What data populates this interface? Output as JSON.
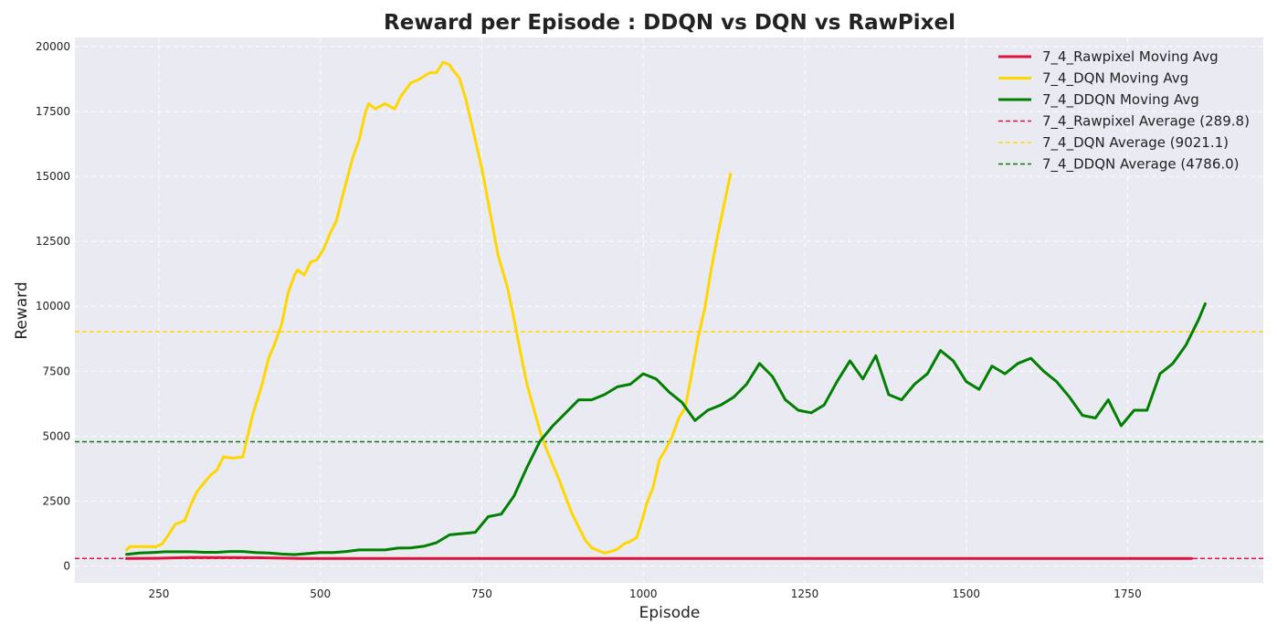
{
  "chart_data": {
    "type": "line",
    "title": "Reward per Episode : DDQN vs DQN vs RawPixel",
    "xlabel": "Episode",
    "ylabel": "Reward",
    "xlim": [
      120,
      1960
    ],
    "ylim": [
      -650,
      20350
    ],
    "xticks": [
      250,
      500,
      750,
      1000,
      1250,
      1500,
      1750
    ],
    "yticks": [
      0,
      2500,
      5000,
      7500,
      10000,
      12500,
      15000,
      17500,
      20000
    ],
    "grid": true,
    "legend_position": "top-right",
    "background": "#eaeaf2",
    "series": [
      {
        "name": "7_4_Rawpixel Moving Avg",
        "style": "solid",
        "color": "#dc143c",
        "x": [
          200,
          250,
          300,
          400,
          470,
          600,
          800,
          1000,
          1200,
          1400,
          1600,
          1849
        ],
        "y": [
          290,
          300,
          330,
          320,
          290,
          290,
          290,
          290,
          290,
          290,
          290,
          290
        ]
      },
      {
        "name": "7_4_DQN Moving Avg",
        "style": "solid",
        "color": "#ffd700",
        "x": [
          200,
          205,
          220,
          245,
          255,
          265,
          275,
          290,
          300,
          310,
          320,
          330,
          340,
          350,
          365,
          380,
          395,
          410,
          420,
          430,
          440,
          450,
          460,
          465,
          475,
          485,
          495,
          505,
          515,
          525,
          535,
          550,
          560,
          570,
          575,
          585,
          600,
          615,
          625,
          640,
          650,
          670,
          680,
          690,
          700,
          705,
          715,
          725,
          740,
          750,
          760,
          775,
          790,
          800,
          810,
          820,
          830,
          840,
          850,
          870,
          890,
          910,
          920,
          940,
          950,
          960,
          970,
          980,
          990,
          1000,
          1005,
          1015,
          1025,
          1035,
          1045,
          1055,
          1065,
          1075,
          1085,
          1095,
          1105,
          1115,
          1125,
          1135
        ],
        "y": [
          620,
          750,
          750,
          740,
          850,
          1200,
          1600,
          1750,
          2400,
          2900,
          3200,
          3500,
          3700,
          4200,
          4150,
          4200,
          5800,
          7000,
          8000,
          8600,
          9300,
          10500,
          11200,
          11400,
          11200,
          11700,
          11800,
          12200,
          12800,
          13300,
          14300,
          15700,
          16400,
          17500,
          17800,
          17600,
          17800,
          17600,
          18100,
          18600,
          18700,
          19000,
          19000,
          19400,
          19300,
          19100,
          18800,
          18000,
          16400,
          15300,
          14000,
          12000,
          10700,
          9500,
          8200,
          7000,
          6100,
          5200,
          4500,
          3300,
          2000,
          1000,
          700,
          500,
          560,
          650,
          850,
          950,
          1100,
          1900,
          2400,
          3000,
          4100,
          4500,
          5000,
          5700,
          6100,
          7400,
          8800,
          9900,
          11400,
          12700,
          13900,
          15100
        ]
      },
      {
        "name": "7_4_DDQN Moving Avg",
        "style": "solid",
        "color": "#008000",
        "x": [
          200,
          220,
          240,
          260,
          280,
          300,
          320,
          340,
          360,
          380,
          400,
          420,
          440,
          460,
          480,
          500,
          520,
          540,
          560,
          580,
          600,
          620,
          640,
          660,
          680,
          700,
          720,
          740,
          760,
          780,
          800,
          820,
          840,
          860,
          880,
          900,
          920,
          940,
          960,
          980,
          1000,
          1020,
          1040,
          1060,
          1080,
          1100,
          1120,
          1140,
          1160,
          1180,
          1200,
          1220,
          1240,
          1260,
          1280,
          1300,
          1320,
          1340,
          1360,
          1380,
          1400,
          1420,
          1440,
          1460,
          1480,
          1500,
          1520,
          1540,
          1560,
          1580,
          1600,
          1620,
          1640,
          1660,
          1680,
          1700,
          1720,
          1740,
          1760,
          1780,
          1800,
          1820,
          1840,
          1860,
          1870
        ],
        "y": [
          450,
          500,
          520,
          550,
          550,
          550,
          530,
          530,
          560,
          560,
          520,
          500,
          460,
          440,
          480,
          520,
          520,
          560,
          620,
          620,
          620,
          690,
          700,
          760,
          900,
          1200,
          1250,
          1300,
          1900,
          2000,
          2700,
          3800,
          4800,
          5400,
          5900,
          6400,
          6400,
          6600,
          6900,
          7000,
          7400,
          7200,
          6700,
          6300,
          5600,
          6000,
          6200,
          6500,
          7000,
          7800,
          7300,
          6400,
          6000,
          5900,
          6200,
          7100,
          7900,
          7200,
          8100,
          6600,
          6400,
          7000,
          7400,
          8300,
          7900,
          7100,
          6800,
          7700,
          7400,
          7800,
          8000,
          7500,
          7100,
          6500,
          5800,
          5700,
          6400,
          5400,
          6000,
          6000,
          7400,
          7800,
          8500,
          9500,
          10100
        ]
      },
      {
        "name": "7_4_Rawpixel Average (289.8)",
        "style": "dashed",
        "color": "#dc143c",
        "value": 289.8
      },
      {
        "name": "7_4_DQN Average (9021.1)",
        "style": "dashed",
        "color": "#ffd700",
        "value": 9021.1
      },
      {
        "name": "7_4_DDQN Average (4786.0)",
        "style": "dashed",
        "color": "#008000",
        "value": 4786.0
      }
    ]
  }
}
